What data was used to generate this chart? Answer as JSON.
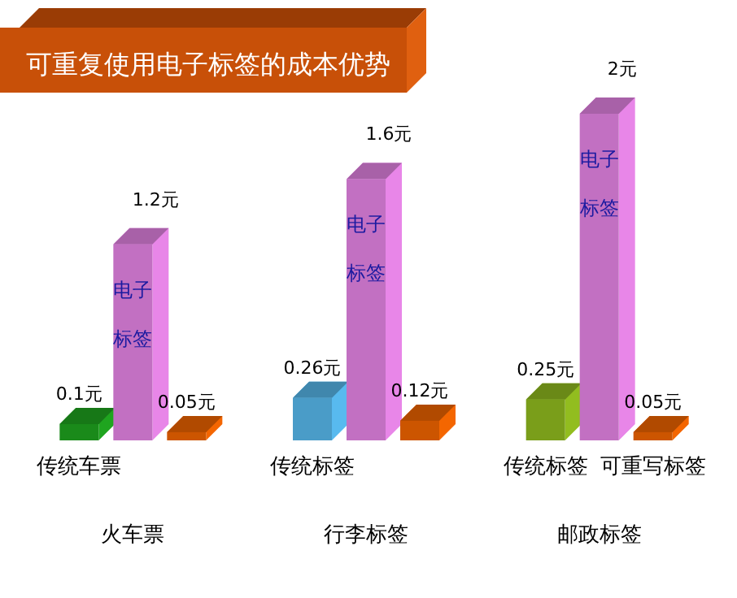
{
  "chart_data": {
    "type": "bar",
    "title": "可重复使用电子标签的成本优势",
    "categories": [
      "火车票",
      "行李标签",
      "邮政标签"
    ],
    "series": [
      {
        "colors": [
          "#1a8a1a",
          "#4a9cc8",
          "#7a9e1a"
        ],
        "values": [
          0.1,
          0.26,
          0.25
        ],
        "value_labels": [
          "0.1元",
          "0.26元",
          "0.25元"
        ]
      },
      {
        "name": "电子标签",
        "color": "#c270c2",
        "values": [
          1.2,
          1.6,
          2
        ],
        "value_labels": [
          "1.2元",
          "1.6元",
          "2元"
        ]
      },
      {
        "color": "#cc5500",
        "values": [
          0.05,
          0.12,
          0.05
        ],
        "value_labels": [
          "0.05元",
          "0.12元",
          "0.05元"
        ]
      }
    ],
    "annotations": [
      "传统车票",
      "传统标签",
      "传统标签",
      "可重写标签"
    ]
  }
}
